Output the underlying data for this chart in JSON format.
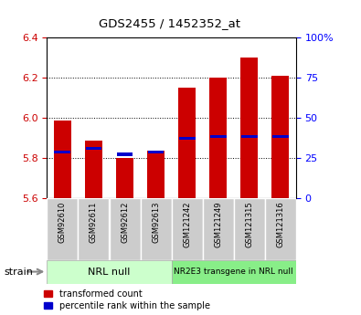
{
  "title": "GDS2455 / 1452352_at",
  "categories": [
    "GSM92610",
    "GSM92611",
    "GSM92612",
    "GSM92613",
    "GSM121242",
    "GSM121249",
    "GSM121315",
    "GSM121316"
  ],
  "red_values": [
    5.99,
    5.89,
    5.8,
    5.84,
    6.15,
    6.2,
    6.3,
    6.21
  ],
  "blue_values": [
    5.83,
    5.85,
    5.82,
    5.83,
    5.9,
    5.91,
    5.91,
    5.91
  ],
  "ymin": 5.6,
  "ymax": 6.4,
  "yticks_left": [
    5.6,
    5.8,
    6.0,
    6.2,
    6.4
  ],
  "yticks_right": [
    0,
    25,
    50,
    75,
    100
  ],
  "group1_label": "NRL null",
  "group2_label": "NR2E3 transgene in NRL null",
  "strain_label": "strain",
  "legend_red": "transformed count",
  "legend_blue": "percentile rank within the sample",
  "bar_width": 0.55,
  "bar_color": "#cc0000",
  "blue_color": "#0000cc",
  "group1_bg": "#ccffcc",
  "group2_bg": "#88ee88",
  "tick_label_bg": "#cccccc",
  "right_label_color": "#0000ff",
  "left_label_color": "#cc0000"
}
